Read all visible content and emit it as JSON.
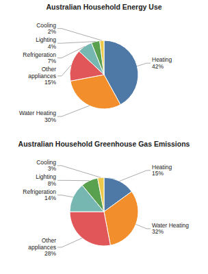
{
  "chart_data": [
    {
      "type": "pie",
      "title": "Australian Household Energy Use",
      "categories": [
        "Heating",
        "Water Heating",
        "Other\nappliances",
        "Refrigeration",
        "Lighting",
        "Cooling"
      ],
      "values": [
        42,
        30,
        15,
        7,
        4,
        2
      ],
      "value_labels": [
        "42%",
        "30%",
        "15%",
        "7%",
        "4%",
        "2%"
      ]
    },
    {
      "type": "pie",
      "title": "Australian Household Greenhouse Gas Emissions",
      "categories": [
        "Heating",
        "Water Heating",
        "Other\nappliances",
        "Refrigeration",
        "Lighting",
        "Cooling"
      ],
      "values": [
        15,
        32,
        28,
        14,
        8,
        3
      ],
      "value_labels": [
        "15%",
        "32%",
        "28%",
        "14%",
        "8%",
        "3%"
      ]
    }
  ]
}
